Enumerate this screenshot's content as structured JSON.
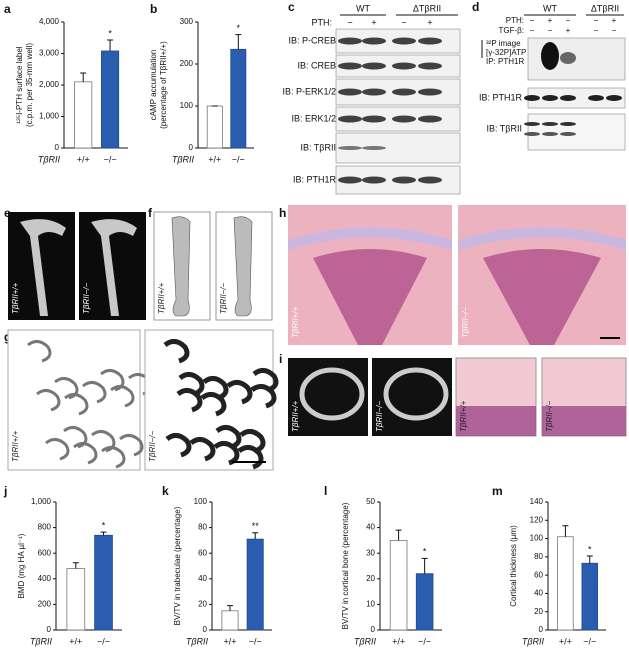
{
  "chart_data": [
    {
      "type": "bar",
      "panel": "a",
      "ylabel": [
        "¹²⁵I-PTH surface label",
        "(c.p.m. per 35-mm well)"
      ],
      "group_label": "TβRII",
      "categories": [
        "+/+",
        "−/−"
      ],
      "values": [
        2100,
        3080
      ],
      "errors": [
        280,
        350
      ],
      "colors": [
        "#ffffff",
        "#2a5db0"
      ],
      "annotation": "*",
      "ylim": [
        0,
        4000
      ],
      "yticks": [
        0,
        {
          "value": 1000,
          "label": "1,000"
        },
        {
          "value": 2000,
          "label": "2,000"
        },
        {
          "value": 3000,
          "label": "3,000"
        },
        {
          "value": 4000,
          "label": "4,000"
        }
      ]
    },
    {
      "type": "bar",
      "panel": "b",
      "ylabel": [
        "cAMP accumulation",
        "(percentage of TβRII+/+)"
      ],
      "group_label": "TβRII",
      "categories": [
        "+/+",
        "−/−"
      ],
      "values": [
        100,
        235
      ],
      "errors": [
        0,
        35
      ],
      "colors": [
        "#ffffff",
        "#2a5db0"
      ],
      "annotation": "*",
      "ylim": [
        0,
        300
      ],
      "yticks": [
        0,
        100,
        200,
        300
      ]
    },
    {
      "type": "bar",
      "panel": "j",
      "ylabel": [
        "BMD (mg HA µl⁻¹)"
      ],
      "group_label": "TβRII",
      "categories": [
        "+/+",
        "−/−"
      ],
      "values": [
        480,
        740
      ],
      "errors": [
        45,
        25
      ],
      "colors": [
        "#ffffff",
        "#2a5db0"
      ],
      "annotation": "*",
      "ylim": [
        0,
        1000
      ],
      "yticks": [
        0,
        200,
        400,
        600,
        800,
        {
          "value": 1000,
          "label": "1,000"
        }
      ]
    },
    {
      "type": "bar",
      "panel": "k",
      "ylabel": [
        "BV/TV  in trabeculae (percentage)"
      ],
      "group_label": "TβRII",
      "categories": [
        "+/+",
        "−/−"
      ],
      "values": [
        15,
        71
      ],
      "errors": [
        4,
        5
      ],
      "colors": [
        "#ffffff",
        "#2a5db0"
      ],
      "annotation": "**",
      "ylim": [
        0,
        100
      ],
      "yticks": [
        0,
        20,
        40,
        60,
        80,
        100
      ]
    },
    {
      "type": "bar",
      "panel": "l",
      "ylabel": [
        "BV/TV in cortical bone (percentage)"
      ],
      "group_label": "TβRII",
      "categories": [
        "+/+",
        "−/−"
      ],
      "values": [
        35,
        22
      ],
      "errors": [
        4,
        6
      ],
      "colors": [
        "#ffffff",
        "#2a5db0"
      ],
      "annotation": "*",
      "ylim": [
        0,
        50
      ],
      "yticks": [
        0,
        10,
        20,
        30,
        40,
        50
      ]
    },
    {
      "type": "bar",
      "panel": "m",
      "ylabel": [
        "Cortical thickness (µm)"
      ],
      "group_label": "TβRII",
      "categories": [
        "+/+",
        "−/−"
      ],
      "values": [
        102,
        73
      ],
      "errors": [
        12,
        8
      ],
      "colors": [
        "#ffffff",
        "#2a5db0"
      ],
      "annotation": "*",
      "ylim": [
        0,
        140
      ],
      "yticks": [
        0,
        20,
        40,
        60,
        80,
        100,
        120,
        140
      ]
    }
  ],
  "panels": {
    "c": {
      "letter": "c",
      "treatment": "PTH:",
      "groups": [
        "WT",
        "ΔTβRII"
      ],
      "signs": [
        "−",
        "+",
        "−",
        "+"
      ],
      "rows": [
        "IB: P-CREB",
        "IB: CREB",
        "IB: P-ERK1/2",
        "IB: ERK1/2",
        "IB: TβRII",
        "IB: PTH1R"
      ]
    },
    "d": {
      "letter": "d",
      "treatments": [
        "PTH:",
        "TGF-β:"
      ],
      "groups": [
        "WT",
        "ΔTβRII"
      ],
      "signs": [
        [
          "−",
          "+",
          "−",
          "−",
          "+"
        ],
        [
          "−",
          "−",
          "+",
          "−",
          "−"
        ]
      ],
      "rows": [
        "³²P image",
        "[γ-32P]ATP",
        "IP: PTH1R",
        "IB: PTH1R",
        "IB: TβRII"
      ]
    },
    "e": {
      "letter": "e",
      "labels": [
        "TβRII+/+",
        "TβRII−/−"
      ]
    },
    "f": {
      "letter": "f",
      "labels": [
        "TβRII+/+",
        "TβRII−/−"
      ]
    },
    "g": {
      "letter": "g",
      "labels": [
        "TβRII+/+",
        "TβRII−/−"
      ]
    },
    "h": {
      "letter": "h",
      "labels": [
        "TβRII+/+",
        "TβRII−/−"
      ]
    },
    "i": {
      "letter": "i",
      "labels": [
        "TβRII+/+",
        "TβRII−/−",
        "TβRII+/+",
        "TβRII−/−"
      ]
    }
  }
}
